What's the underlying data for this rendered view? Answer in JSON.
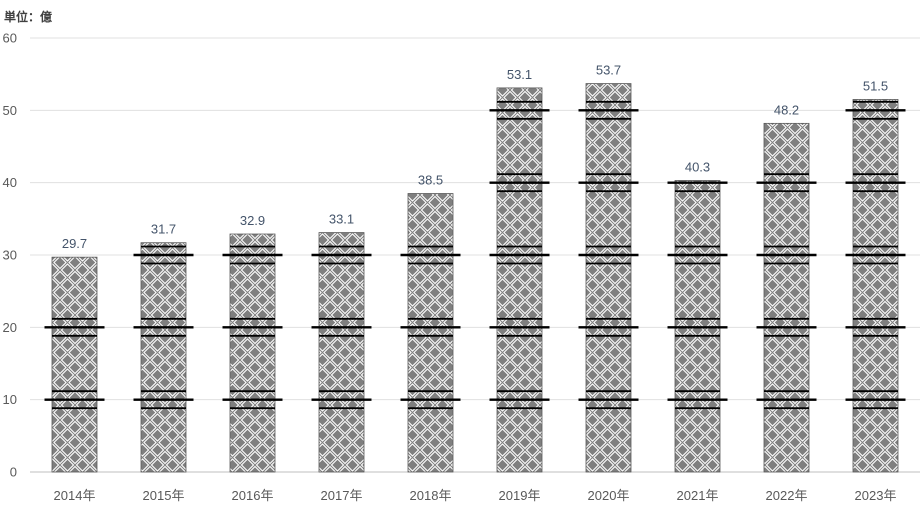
{
  "chart_data": {
    "type": "bar",
    "ylabel": "単位：億",
    "categories": [
      "2014年",
      "2015年",
      "2016年",
      "2017年",
      "2018年",
      "2019年",
      "2020年",
      "2021年",
      "2022年",
      "2023年"
    ],
    "values": [
      29.7,
      31.7,
      32.9,
      33.1,
      38.5,
      53.1,
      53.7,
      40.3,
      48.2,
      51.5
    ],
    "ylim": [
      0,
      60
    ],
    "yticks": [
      0,
      10,
      20,
      30,
      40,
      50,
      60
    ],
    "grid": true,
    "colors": {
      "bar": "#7f7f7f",
      "bar_edge": "#595959",
      "pattern": "#ffffff",
      "marker": "#000000",
      "grid": "#e0e0e0",
      "axis": "#bfbfbf"
    }
  }
}
